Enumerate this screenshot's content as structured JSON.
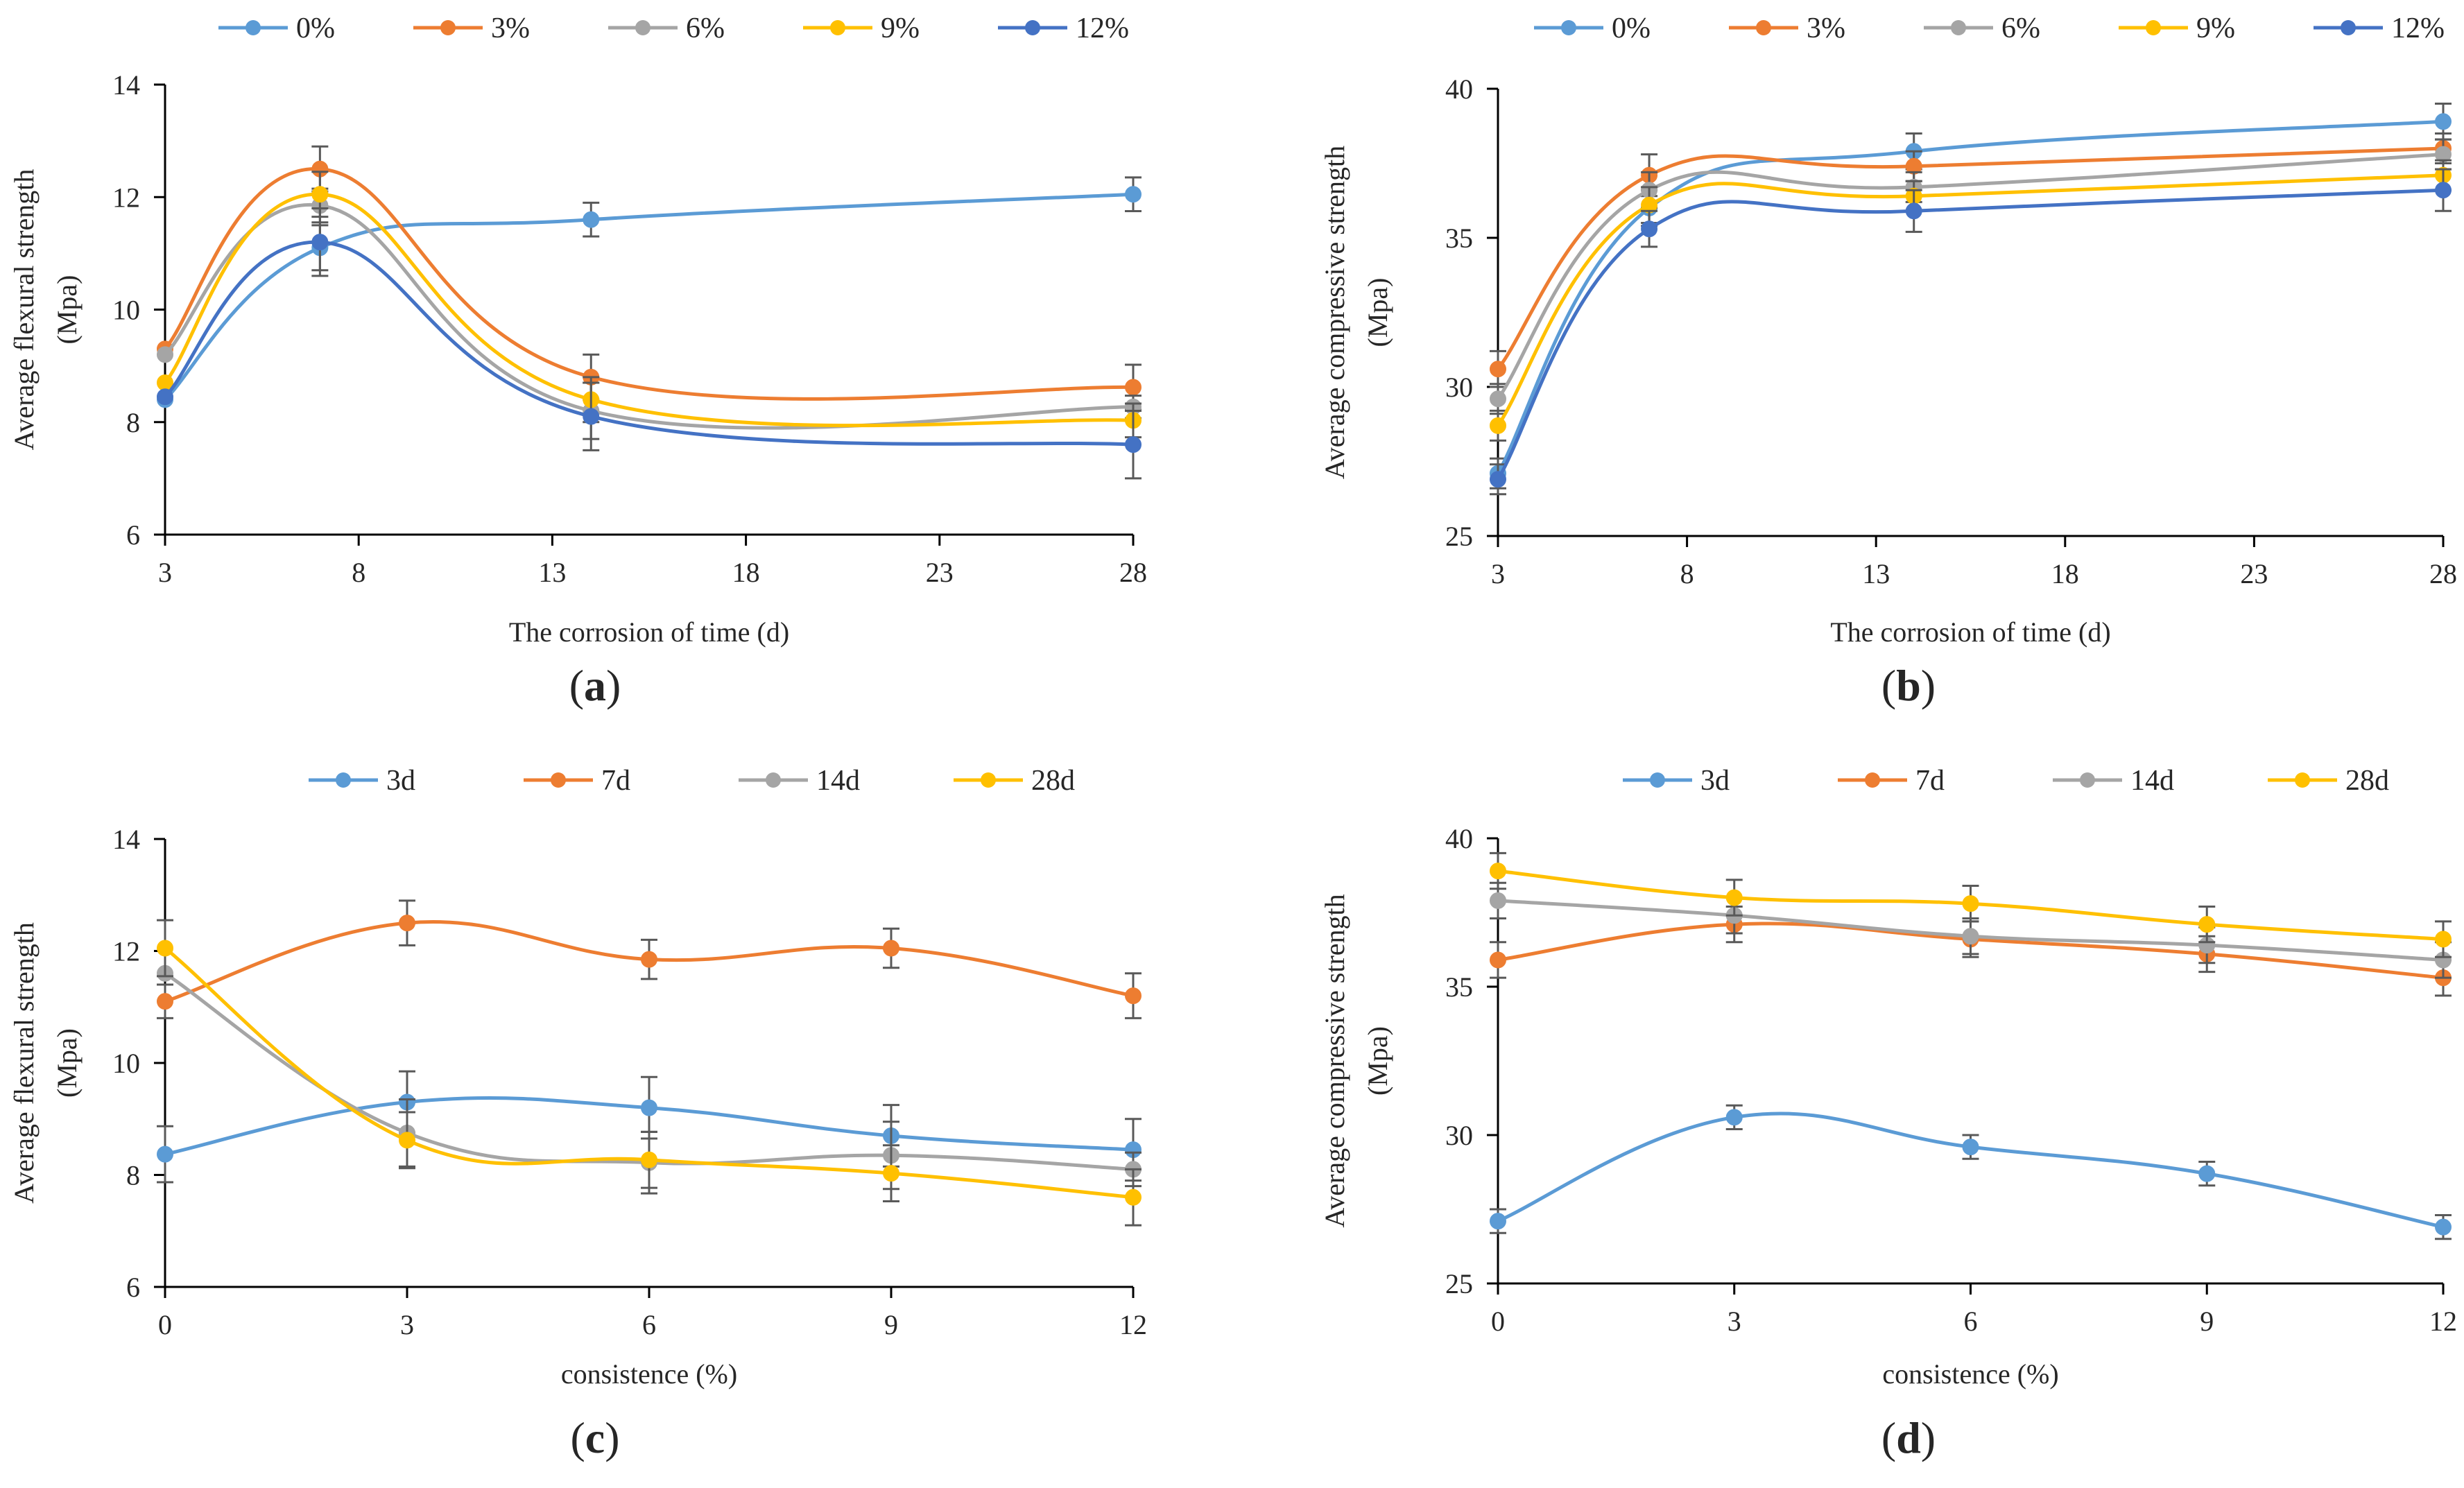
{
  "figure": {
    "panels": [
      {
        "id": "a",
        "panel_label": "a",
        "x_data": [
          3,
          7,
          14,
          28
        ],
        "x_ticks": [
          3,
          8,
          13,
          18,
          23,
          28
        ],
        "y_ticks": [
          6,
          8,
          10,
          12,
          14
        ],
        "xlim": [
          3,
          28
        ],
        "ylim": [
          6,
          14
        ],
        "xlabel": "The corrosion of time (d)",
        "ylabel_lines": [
          "Average flexural strength",
          "(Mpa)"
        ],
        "series": [
          {
            "name": "0%",
            "color": "#5B9BD5",
            "values": [
              8.4,
              11.1,
              11.6,
              12.05
            ],
            "errors": [
              0,
              0.4,
              0.3,
              0.3
            ]
          },
          {
            "name": "3%",
            "color": "#ED7D31",
            "values": [
              9.3,
              12.5,
              8.8,
              8.62
            ],
            "errors": [
              0,
              0.4,
              0.4,
              0.4
            ]
          },
          {
            "name": "6%",
            "color": "#A5A5A5",
            "values": [
              9.2,
              11.85,
              8.2,
              8.27
            ],
            "errors": [
              0,
              0.3,
              0.5,
              0.2
            ]
          },
          {
            "name": "9%",
            "color": "#FFC000",
            "values": [
              8.7,
              12.05,
              8.4,
              8.03
            ],
            "errors": [
              0,
              0.4,
              0.4,
              0.3
            ]
          },
          {
            "name": "12%",
            "color": "#4472C4",
            "values": [
              8.45,
              11.2,
              8.1,
              7.6
            ],
            "errors": [
              0,
              0.6,
              0.6,
              0.6
            ]
          }
        ]
      },
      {
        "id": "b",
        "panel_label": "b",
        "x_data": [
          3,
          7,
          14,
          28
        ],
        "x_ticks": [
          3,
          8,
          13,
          18,
          23,
          28
        ],
        "y_ticks": [
          25,
          30,
          35,
          40
        ],
        "xlim": [
          3,
          28
        ],
        "ylim": [
          25,
          40
        ],
        "xlabel": "The corrosion of time (d)",
        "ylabel_lines": [
          "Average compressive strength",
          "(Mpa)"
        ],
        "series": [
          {
            "name": "0%",
            "color": "#5B9BD5",
            "values": [
              27.1,
              36.0,
              37.9,
              38.9
            ],
            "errors": [
              0.5,
              0.6,
              0.6,
              0.6
            ]
          },
          {
            "name": "3%",
            "color": "#ED7D31",
            "values": [
              30.6,
              37.1,
              37.4,
              38.0
            ],
            "errors": [
              0.6,
              0.7,
              0.5,
              0.5
            ]
          },
          {
            "name": "6%",
            "color": "#A5A5A5",
            "values": [
              29.6,
              36.6,
              36.7,
              37.8
            ],
            "errors": [
              0.5,
              0.6,
              0.5,
              0.5
            ]
          },
          {
            "name": "9%",
            "color": "#FFC000",
            "values": [
              28.7,
              36.1,
              36.4,
              37.1
            ],
            "errors": [
              0.5,
              0.6,
              0.5,
              0.5
            ]
          },
          {
            "name": "12%",
            "color": "#4472C4",
            "values": [
              26.9,
              35.3,
              35.9,
              36.6
            ],
            "errors": [
              0.5,
              0.6,
              0.7,
              0.7
            ]
          }
        ]
      },
      {
        "id": "c",
        "panel_label": "c",
        "x_data": [
          0,
          3,
          6,
          9,
          12
        ],
        "x_ticks": [
          0,
          3,
          6,
          9,
          12
        ],
        "y_ticks": [
          6,
          8,
          10,
          12,
          14
        ],
        "xlim": [
          0,
          12
        ],
        "ylim": [
          6,
          14
        ],
        "xlabel": "consistence (%)",
        "ylabel_lines": [
          "Average flexural strength",
          "(Mpa)"
        ],
        "series": [
          {
            "name": "3d",
            "color": "#5B9BD5",
            "values": [
              8.37,
              9.3,
              9.2,
              8.7,
              8.45
            ],
            "errors": [
              0.5,
              0.55,
              0.55,
              0.55,
              0.55
            ]
          },
          {
            "name": "7d",
            "color": "#ED7D31",
            "values": [
              11.1,
              12.5,
              11.85,
              12.05,
              11.2
            ],
            "errors": [
              0.3,
              0.4,
              0.35,
              0.35,
              0.4
            ]
          },
          {
            "name": "14d",
            "color": "#A5A5A5",
            "values": [
              11.6,
              8.75,
              8.22,
              8.35,
              8.1
            ],
            "errors": [
              0,
              0.6,
              0.55,
              0.6,
              0.3
            ]
          },
          {
            "name": "28d",
            "color": "#FFC000",
            "values": [
              12.05,
              8.62,
              8.27,
              8.03,
              7.6
            ],
            "errors": [
              0.5,
              0.5,
              0.5,
              0.5,
              0.5
            ]
          }
        ]
      },
      {
        "id": "d",
        "panel_label": "d",
        "x_data": [
          0,
          3,
          6,
          9,
          12
        ],
        "x_ticks": [
          0,
          3,
          6,
          9,
          12
        ],
        "y_ticks": [
          25,
          30,
          35,
          40
        ],
        "xlim": [
          0,
          12
        ],
        "ylim": [
          25,
          40
        ],
        "xlabel": "consistence (%)",
        "ylabel_lines": [
          "Average compressive strength",
          "(Mpa)"
        ],
        "series": [
          {
            "name": "3d",
            "color": "#5B9BD5",
            "values": [
              27.1,
              30.6,
              29.6,
              28.7,
              26.9
            ],
            "errors": [
              0.4,
              0.4,
              0.4,
              0.4,
              0.4
            ]
          },
          {
            "name": "7d",
            "color": "#ED7D31",
            "values": [
              35.9,
              37.1,
              36.6,
              36.1,
              35.3
            ],
            "errors": [
              0.6,
              0.6,
              0.6,
              0.6,
              0.6
            ]
          },
          {
            "name": "14d",
            "color": "#A5A5A5",
            "values": [
              37.9,
              37.4,
              36.7,
              36.4,
              35.9
            ],
            "errors": [
              0.6,
              0.6,
              0.6,
              0.6,
              0.6
            ]
          },
          {
            "name": "28d",
            "color": "#FFC000",
            "values": [
              38.9,
              38.0,
              37.8,
              37.1,
              36.6
            ],
            "errors": [
              0.6,
              0.6,
              0.6,
              0.6,
              0.6
            ]
          }
        ]
      }
    ]
  },
  "chart_data": [
    {
      "type": "line",
      "panel": "a",
      "xlabel": "The corrosion of time (d)",
      "ylabel": "Average flexural strength (Mpa)",
      "x": [
        3,
        7,
        14,
        28
      ],
      "xlim": [
        3,
        28
      ],
      "ylim": [
        6,
        14
      ],
      "series": [
        {
          "name": "0%",
          "values": [
            8.4,
            11.1,
            11.6,
            12.05
          ]
        },
        {
          "name": "3%",
          "values": [
            9.3,
            12.5,
            8.8,
            8.62
          ]
        },
        {
          "name": "6%",
          "values": [
            9.2,
            11.85,
            8.2,
            8.27
          ]
        },
        {
          "name": "9%",
          "values": [
            8.7,
            12.05,
            8.4,
            8.03
          ]
        },
        {
          "name": "12%",
          "values": [
            8.45,
            11.2,
            8.1,
            7.6
          ]
        }
      ],
      "legend": "top"
    },
    {
      "type": "line",
      "panel": "b",
      "xlabel": "The corrosion of time (d)",
      "ylabel": "Average compressive strength (Mpa)",
      "x": [
        3,
        7,
        14,
        28
      ],
      "xlim": [
        3,
        28
      ],
      "ylim": [
        25,
        40
      ],
      "series": [
        {
          "name": "0%",
          "values": [
            27.1,
            36.0,
            37.9,
            38.9
          ]
        },
        {
          "name": "3%",
          "values": [
            30.6,
            37.1,
            37.4,
            38.0
          ]
        },
        {
          "name": "6%",
          "values": [
            29.6,
            36.6,
            36.7,
            37.8
          ]
        },
        {
          "name": "9%",
          "values": [
            28.7,
            36.1,
            36.4,
            37.1
          ]
        },
        {
          "name": "12%",
          "values": [
            26.9,
            35.3,
            35.9,
            36.6
          ]
        }
      ],
      "legend": "top"
    },
    {
      "type": "line",
      "panel": "c",
      "xlabel": "consistence (%)",
      "ylabel": "Average flexural strength (Mpa)",
      "x": [
        0,
        3,
        6,
        9,
        12
      ],
      "xlim": [
        0,
        12
      ],
      "ylim": [
        6,
        14
      ],
      "series": [
        {
          "name": "3d",
          "values": [
            8.37,
            9.3,
            9.2,
            8.7,
            8.45
          ]
        },
        {
          "name": "7d",
          "values": [
            11.1,
            12.5,
            11.85,
            12.05,
            11.2
          ]
        },
        {
          "name": "14d",
          "values": [
            11.6,
            8.75,
            8.22,
            8.35,
            8.1
          ]
        },
        {
          "name": "28d",
          "values": [
            12.05,
            8.62,
            8.27,
            8.03,
            7.6
          ]
        }
      ],
      "legend": "top"
    },
    {
      "type": "line",
      "panel": "d",
      "xlabel": "consistence (%)",
      "ylabel": "Average compressive strength (Mpa)",
      "x": [
        0,
        3,
        6,
        9,
        12
      ],
      "xlim": [
        0,
        12
      ],
      "ylim": [
        25,
        40
      ],
      "series": [
        {
          "name": "3d",
          "values": [
            27.1,
            30.6,
            29.6,
            28.7,
            26.9
          ]
        },
        {
          "name": "7d",
          "values": [
            35.9,
            37.1,
            36.6,
            36.1,
            35.3
          ]
        },
        {
          "name": "14d",
          "values": [
            37.9,
            37.4,
            36.7,
            36.4,
            35.9
          ]
        },
        {
          "name": "28d",
          "values": [
            38.9,
            38.0,
            37.8,
            37.1,
            36.6
          ]
        }
      ],
      "legend": "top"
    }
  ]
}
